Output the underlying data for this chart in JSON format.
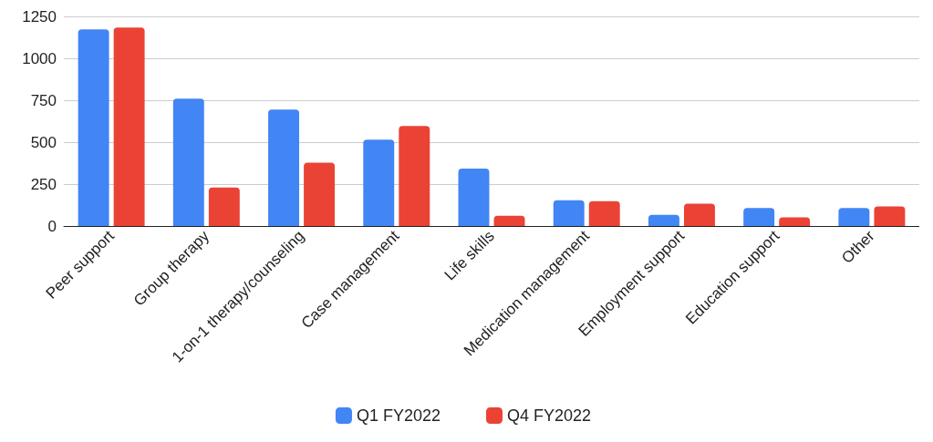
{
  "chart_data": {
    "type": "bar",
    "categories": [
      "Peer support",
      "Group therapy",
      "1-on-1 therapy/counseling",
      "Case management",
      "Life skills",
      "Medication management",
      "Employment support",
      "Education support",
      "Other"
    ],
    "series": [
      {
        "name": "Q1 FY2022",
        "color": "#4285f4",
        "values": [
          1173,
          760,
          694,
          515,
          342,
          153,
          66,
          107,
          107
        ]
      },
      {
        "name": "Q4 FY2022",
        "color": "#ea4335",
        "values": [
          1184,
          230,
          378,
          597,
          61,
          148,
          133,
          51,
          117
        ]
      }
    ],
    "ylim": [
      0,
      1250
    ],
    "yticks": [
      0,
      250,
      500,
      750,
      1000,
      1250
    ],
    "grid": "y",
    "legend": "bottom"
  }
}
